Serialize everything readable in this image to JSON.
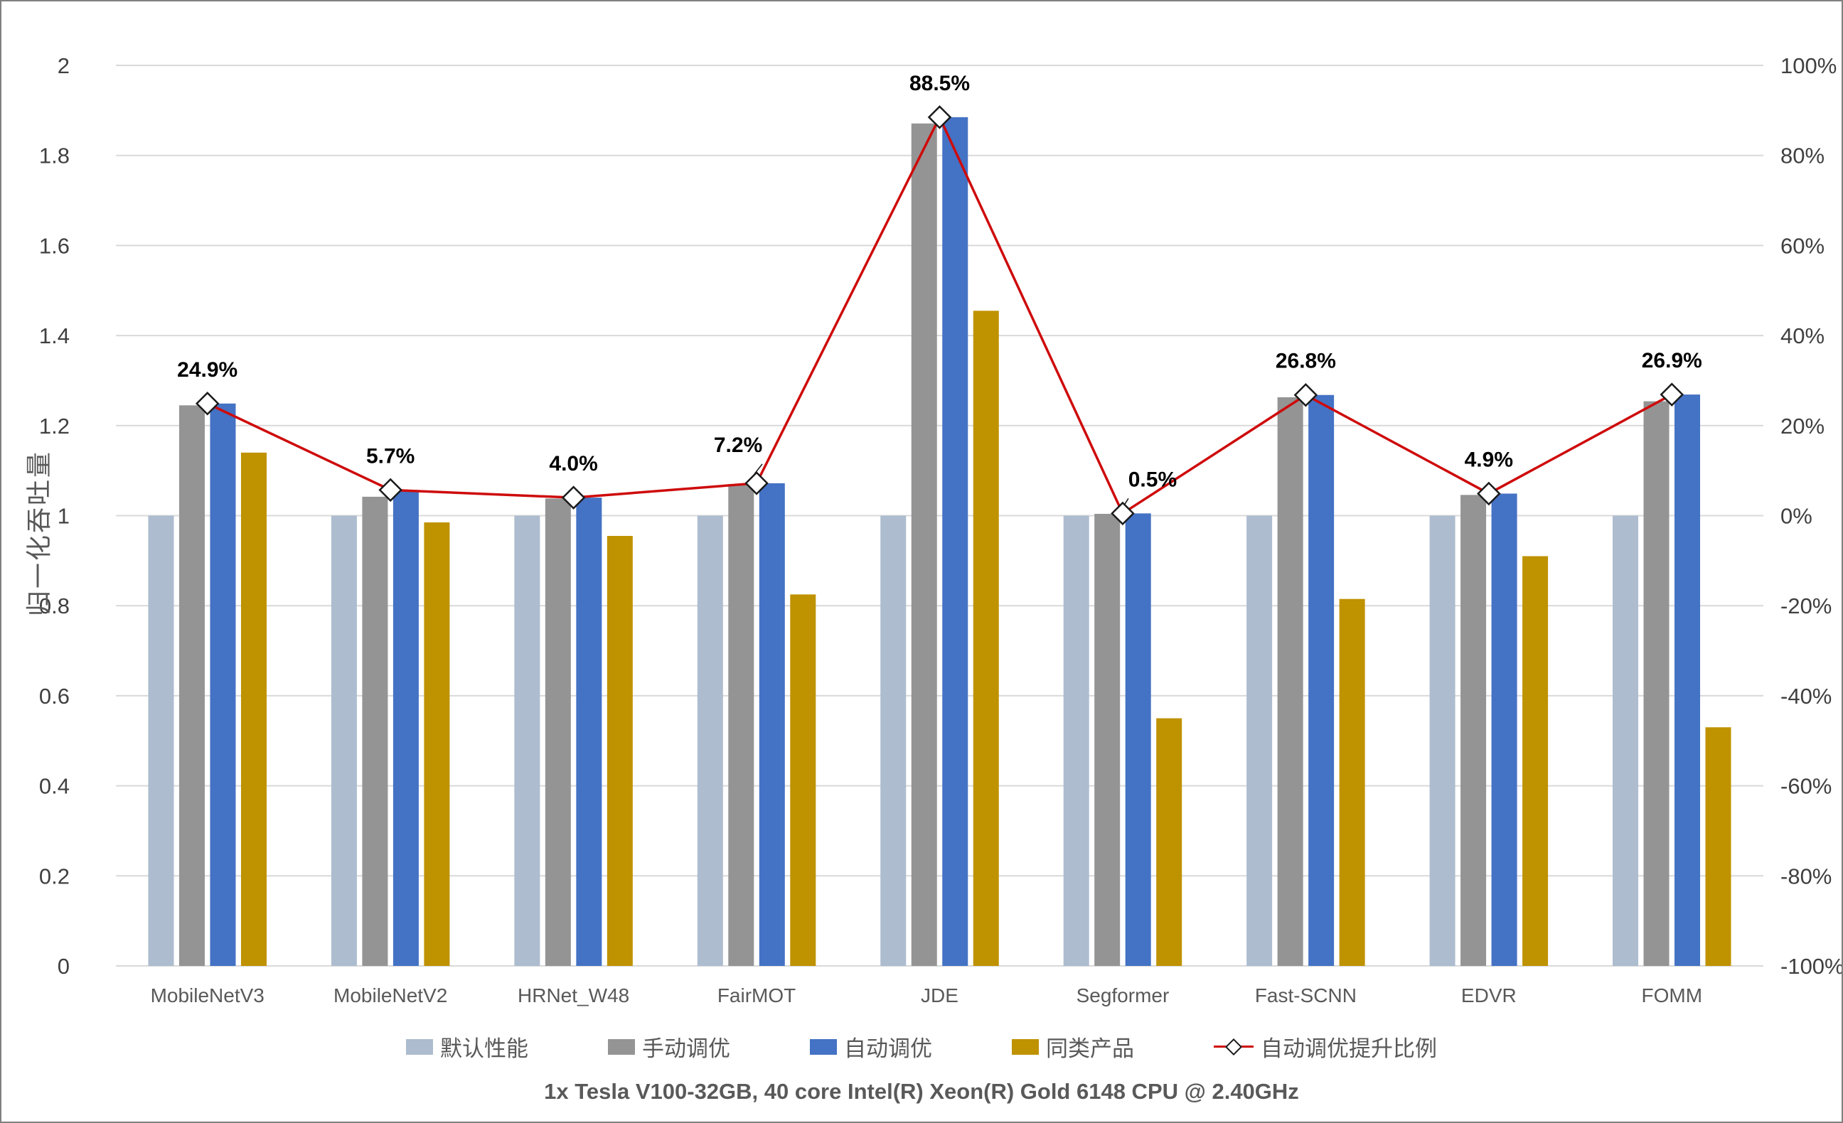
{
  "chart_data": {
    "type": "bar+line",
    "categories": [
      "MobileNetV3",
      "MobileNetV2",
      "HRNet_W48",
      "FairMOT",
      "JDE",
      "Segformer",
      "Fast-SCNN",
      "EDVR",
      "FOMM"
    ],
    "series": [
      {
        "id": "default",
        "name": "默认性能",
        "type": "bar",
        "color": "#ADBCCF",
        "values": [
          1.0,
          1.0,
          1.0,
          1.0,
          1.0,
          1.0,
          1.0,
          1.0,
          1.0
        ]
      },
      {
        "id": "manual",
        "name": "手动调优",
        "type": "bar",
        "color": "#949494",
        "values": [
          1.245,
          1.042,
          1.038,
          1.07,
          1.871,
          1.004,
          1.263,
          1.046,
          1.254
        ]
      },
      {
        "id": "auto",
        "name": "自动调优",
        "type": "bar",
        "color": "#4472C4",
        "values": [
          1.249,
          1.057,
          1.04,
          1.072,
          1.885,
          1.005,
          1.268,
          1.049,
          1.269
        ]
      },
      {
        "id": "competitor",
        "name": "同类产品",
        "type": "bar",
        "color": "#BF9200",
        "values": [
          1.14,
          0.985,
          0.955,
          0.825,
          1.455,
          0.55,
          0.815,
          0.91,
          0.53
        ]
      },
      {
        "id": "improvement",
        "name": "自动调优提升比例",
        "type": "line",
        "axis": "right",
        "color": "#CE0B0B",
        "marker": "diamond",
        "values_pct": [
          24.9,
          5.7,
          4.0,
          7.2,
          88.5,
          0.5,
          26.8,
          4.9,
          26.9
        ],
        "point_labels": [
          "24.9%",
          "5.7%",
          "4.0%",
          "7.2%",
          "88.5%",
          "0.5%",
          "26.8%",
          "4.9%",
          "26.9%"
        ],
        "label_offsets": {
          "3": {
            "dx": -26,
            "dy": -44,
            "leader": true
          },
          "5": {
            "dx": 42,
            "dy": -38,
            "leader": true
          }
        }
      }
    ],
    "left_axis": {
      "title": "归一化吞吐量",
      "min": 0,
      "max": 2,
      "tick_labels": [
        "2",
        "1.8",
        "1.6",
        "1.4",
        "1.2",
        "1",
        "0.8",
        "0.6",
        "0.4",
        "0.2",
        "0"
      ]
    },
    "right_axis": {
      "min": -100,
      "max": 100,
      "tick_labels": [
        "100%",
        "80%",
        "60%",
        "40%",
        "20%",
        "0%",
        "-20%",
        "-40%",
        "-60%",
        "-80%",
        "-100%"
      ]
    },
    "grid": true,
    "legend_position": "bottom",
    "title": "",
    "xlabel": ""
  },
  "caption": "1x Tesla V100-32GB, 40 core Intel(R) Xeon(R) Gold 6148 CPU @ 2.40GHz",
  "style_colors": {
    "gridline": "#D9D9D9",
    "axis_tick_text": "#404040",
    "category_text": "#595959",
    "data_label_text": "#000000",
    "marker_fill": "#FFFFFF",
    "marker_stroke": "#1a1a1a"
  }
}
